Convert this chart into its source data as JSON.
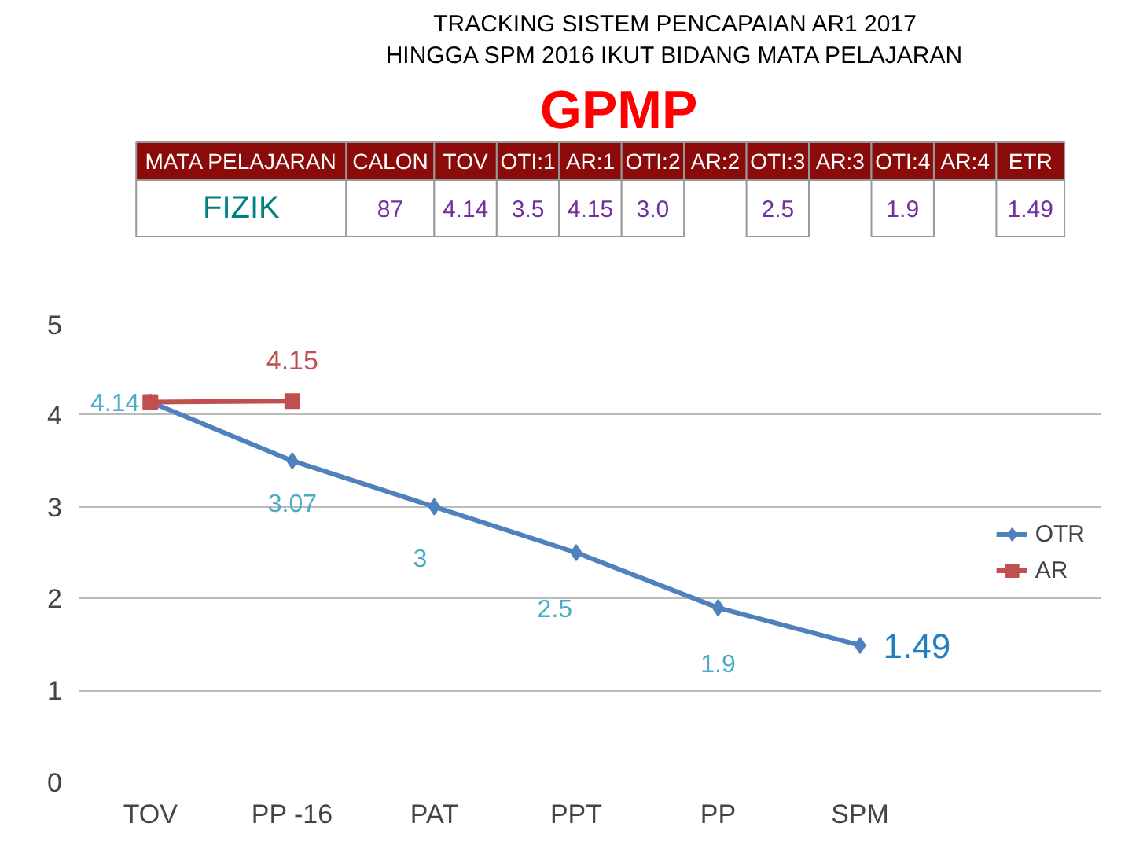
{
  "chart_data": {
    "type": "line",
    "title": "TRACKING SISTEM PENCAPAIAN AR1 2017\nHINGGA SPM 2016 IKUT BIDANG MATA PELAJARAN",
    "subtitle": "GPMP",
    "annotations": [
      "MATA PELAJARAN",
      "CALON",
      "TOV",
      "OTI:1",
      "AR:1",
      "OTI:2",
      "AR:2",
      "OTI:3",
      "AR:3",
      "OTI:4",
      "AR:4",
      "ETR",
      "FIZIK",
      "87",
      "4.14",
      "3.5",
      "4.15",
      "3.0",
      "2.5",
      "1.9",
      "1.49",
      "3.07"
    ],
    "categories": [
      "TOV",
      "PP -16",
      "PAT",
      "PPT",
      "PP",
      "SPM"
    ],
    "series": [
      {
        "name": "OTR",
        "color": "#4f81bd",
        "marker": "diamond",
        "values": [
          4.14,
          3.5,
          3.0,
          2.5,
          1.9,
          1.49
        ],
        "value_labels": [
          "4.14",
          null,
          "3",
          "2.5",
          "1.9",
          "1.49"
        ]
      },
      {
        "name": "AR",
        "color": "#c0504d",
        "marker": "square",
        "values": [
          4.14,
          4.15,
          null,
          null,
          null,
          null
        ],
        "value_labels": [
          null,
          "4.15",
          null,
          null,
          null,
          null
        ]
      }
    ],
    "ylim": [
      0,
      5
    ],
    "yticks": [
      0,
      1,
      2,
      3,
      4,
      5
    ],
    "grid": "y",
    "legend": "right"
  }
}
